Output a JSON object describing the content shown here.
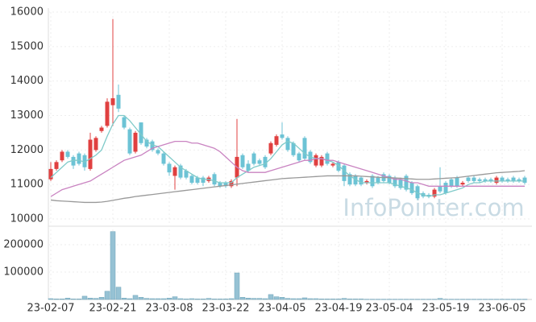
{
  "chart_data": {
    "type": "candlestick",
    "watermark": "InfoPointer.com",
    "categories": [
      "23-02-07",
      null,
      null,
      null,
      null,
      null,
      null,
      null,
      null,
      null,
      null,
      "23-02-21",
      null,
      null,
      null,
      null,
      null,
      null,
      null,
      null,
      null,
      "23-03-08",
      null,
      null,
      null,
      null,
      null,
      null,
      null,
      null,
      null,
      "23-03-22",
      null,
      null,
      null,
      null,
      null,
      null,
      null,
      null,
      null,
      "23-04-05",
      null,
      null,
      null,
      null,
      null,
      null,
      null,
      null,
      null,
      "23-04-19",
      null,
      null,
      null,
      null,
      null,
      null,
      null,
      null,
      "23-05-04",
      null,
      null,
      null,
      null,
      null,
      null,
      null,
      null,
      null,
      "23-05-19",
      null,
      null,
      null,
      null,
      null,
      null,
      null,
      null,
      null,
      "23-06-05",
      null,
      null,
      null,
      null
    ],
    "open": [
      11150,
      11450,
      11700,
      11950,
      11800,
      11900,
      11850,
      11450,
      12000,
      12550,
      12700,
      13300,
      13600,
      12950,
      12600,
      11950,
      12800,
      12300,
      12250,
      12000,
      11900,
      11600,
      11250,
      11550,
      11400,
      11250,
      11200,
      11200,
      11100,
      11300,
      11050,
      11050,
      10950,
      11200,
      11850,
      11600,
      11900,
      11700,
      11800,
      11900,
      12150,
      12450,
      12350,
      12200,
      11900,
      12350,
      11950,
      11550,
      11550,
      11900,
      11550,
      11650,
      11550,
      11300,
      11250,
      11200,
      11050,
      11250,
      11200,
      11300,
      11250,
      11200,
      11150,
      11250,
      11050,
      10950,
      10750,
      10700,
      10650,
      10950,
      11050,
      11150,
      11200,
      11000,
      11200,
      11200,
      11150,
      11150,
      11150,
      11050,
      11200,
      11150,
      11200,
      11150,
      11200
    ],
    "high": [
      11650,
      11700,
      12000,
      12000,
      11850,
      11950,
      11900,
      12500,
      12400,
      12700,
      13500,
      15800,
      13900,
      13000,
      12650,
      12550,
      12800,
      12350,
      12300,
      12050,
      11950,
      11650,
      11550,
      11600,
      11450,
      11300,
      11250,
      11250,
      11250,
      11350,
      11100,
      11100,
      11150,
      12900,
      11900,
      11700,
      11950,
      11750,
      11850,
      12250,
      12450,
      12800,
      12400,
      12250,
      11950,
      12400,
      12000,
      11900,
      11850,
      11950,
      11650,
      11700,
      11600,
      11350,
      11300,
      11250,
      11150,
      11300,
      11250,
      11350,
      11300,
      11250,
      11200,
      11300,
      11100,
      11000,
      10800,
      10750,
      10900,
      11500,
      11100,
      11200,
      11250,
      11100,
      11250,
      11250,
      11200,
      11200,
      11200,
      11250,
      11250,
      11200,
      11250,
      11200,
      11250
    ],
    "low": [
      11100,
      11400,
      11650,
      11750,
      11450,
      11550,
      11400,
      11400,
      11950,
      12500,
      12650,
      12700,
      13100,
      12600,
      11850,
      11900,
      12150,
      12050,
      11950,
      11850,
      11550,
      11250,
      10850,
      11150,
      11150,
      11000,
      11000,
      10950,
      11050,
      10950,
      10900,
      10900,
      10900,
      10950,
      11450,
      11350,
      11550,
      11550,
      11450,
      11850,
      12100,
      12300,
      11950,
      11800,
      11650,
      11700,
      11600,
      11500,
      11500,
      11550,
      11500,
      11350,
      10950,
      10950,
      10950,
      10950,
      11000,
      10900,
      11000,
      11050,
      11000,
      10900,
      10850,
      10800,
      10700,
      10550,
      10600,
      10600,
      10600,
      10750,
      10700,
      10900,
      10900,
      10950,
      11050,
      11050,
      11050,
      11050,
      11050,
      11000,
      11050,
      11050,
      11050,
      11050,
      11000
    ],
    "close": [
      11450,
      11650,
      11950,
      11800,
      11550,
      11600,
      11500,
      12300,
      12350,
      12650,
      13400,
      13500,
      13200,
      12650,
      11900,
      12500,
      12200,
      12100,
      12000,
      11900,
      11600,
      11350,
      11500,
      11200,
      11200,
      11050,
      11050,
      11050,
      11200,
      11000,
      10950,
      10950,
      11100,
      11800,
      11500,
      11400,
      11600,
      11600,
      11500,
      12200,
      12400,
      12350,
      12000,
      11850,
      11700,
      11750,
      11650,
      11850,
      11800,
      11600,
      11600,
      11400,
      11100,
      11000,
      11000,
      11000,
      11100,
      10950,
      11050,
      11100,
      11050,
      10950,
      10900,
      10850,
      10750,
      10600,
      10650,
      10650,
      10850,
      10800,
      10750,
      10950,
      10950,
      11050,
      11100,
      11100,
      11100,
      11100,
      11100,
      11200,
      11100,
      11100,
      11100,
      11100,
      11050
    ],
    "volume": [
      3000,
      2000,
      2000,
      5000,
      2000,
      2000,
      12000,
      5000,
      4000,
      8000,
      30000,
      248000,
      45000,
      5000,
      3000,
      15000,
      8000,
      4000,
      3000,
      3000,
      3000,
      5000,
      10000,
      3000,
      2000,
      3000,
      2000,
      2000,
      4000,
      2000,
      2000,
      2000,
      3000,
      97000,
      8000,
      5000,
      4000,
      4000,
      3000,
      18000,
      10000,
      8000,
      4000,
      3000,
      3000,
      6000,
      3000,
      3000,
      2000,
      2000,
      2000,
      2000,
      4000,
      2000,
      2000,
      2000,
      1000,
      1000,
      1000,
      1000,
      1000,
      1000,
      1000,
      1000,
      1000,
      1000,
      1000,
      1000,
      1000,
      4000,
      1000,
      1000,
      1000,
      1000,
      1000,
      1000,
      1000,
      1000,
      1000,
      1000,
      1000,
      1000,
      1000,
      1000,
      1000
    ],
    "lines": [
      {
        "color": "#7fcac9",
        "values": [
          11200,
          11350,
          11500,
          11650,
          11700,
          11700,
          11650,
          11750,
          11850,
          12000,
          12400,
          12750,
          13000,
          13000,
          12850,
          12650,
          12450,
          12250,
          12150,
          12100,
          11950,
          11800,
          11650,
          11500,
          11400,
          11300,
          11200,
          11150,
          11150,
          11100,
          11050,
          11050,
          11050,
          11200,
          11300,
          11400,
          11500,
          11550,
          11600,
          11750,
          11950,
          12150,
          12250,
          12200,
          12050,
          11900,
          11800,
          11750,
          11750,
          11700,
          11650,
          11550,
          11400,
          11250,
          11150,
          11050,
          11050,
          11050,
          11050,
          11050,
          11050,
          11000,
          10950,
          10900,
          10850,
          10750,
          10700,
          10650,
          10700,
          10700,
          10750,
          10800,
          10850,
          10900,
          11000,
          11050,
          11050,
          11100,
          11100,
          11100,
          11100,
          11100,
          11100,
          11100,
          11100
        ]
      },
      {
        "color": "#c983c1",
        "values": [
          10650,
          10750,
          10850,
          10900,
          10950,
          11000,
          11050,
          11100,
          11200,
          11300,
          11400,
          11500,
          11600,
          11700,
          11750,
          11800,
          11850,
          11950,
          12050,
          12100,
          12150,
          12200,
          12250,
          12250,
          12250,
          12200,
          12200,
          12150,
          12100,
          12050,
          11950,
          11800,
          11650,
          11500,
          11400,
          11350,
          11350,
          11350,
          11350,
          11400,
          11450,
          11500,
          11550,
          11600,
          11650,
          11700,
          11700,
          11750,
          11750,
          11700,
          11700,
          11650,
          11600,
          11550,
          11500,
          11450,
          11400,
          11350,
          11300,
          11250,
          11200,
          11150,
          11150,
          11100,
          11050,
          11050,
          11000,
          10950,
          10950,
          10950,
          10950,
          10950,
          10950,
          10950,
          10950,
          10950,
          10950,
          10950,
          10950,
          10950,
          10950,
          10950,
          10950,
          10950,
          10950
        ]
      },
      {
        "color": "#999999",
        "values": [
          10550,
          10530,
          10520,
          10510,
          10500,
          10490,
          10480,
          10480,
          10480,
          10490,
          10510,
          10540,
          10570,
          10600,
          10620,
          10650,
          10670,
          10690,
          10710,
          10730,
          10750,
          10770,
          10790,
          10810,
          10830,
          10850,
          10870,
          10890,
          10910,
          10930,
          10950,
          10970,
          10990,
          11010,
          11030,
          11050,
          11070,
          11090,
          11110,
          11130,
          11150,
          11170,
          11180,
          11190,
          11200,
          11210,
          11220,
          11230,
          11240,
          11250,
          11250,
          11250,
          11250,
          11250,
          11250,
          11240,
          11230,
          11220,
          11210,
          11200,
          11200,
          11190,
          11180,
          11170,
          11160,
          11150,
          11150,
          11150,
          11160,
          11170,
          11180,
          11190,
          11200,
          11220,
          11240,
          11260,
          11280,
          11300,
          11320,
          11340,
          11350,
          11360,
          11370,
          11380,
          11400
        ]
      }
    ],
    "up_color": "#e04040",
    "down_color": "#6cc3d5",
    "volume_color": "#96c2d4",
    "ylim": [
      10000,
      16000
    ],
    "yticks": [
      10000,
      11000,
      12000,
      13000,
      14000,
      15000,
      16000
    ],
    "y2lim": [
      0,
      250000
    ],
    "y2ticks": [
      100000,
      200000
    ],
    "grid": true
  }
}
